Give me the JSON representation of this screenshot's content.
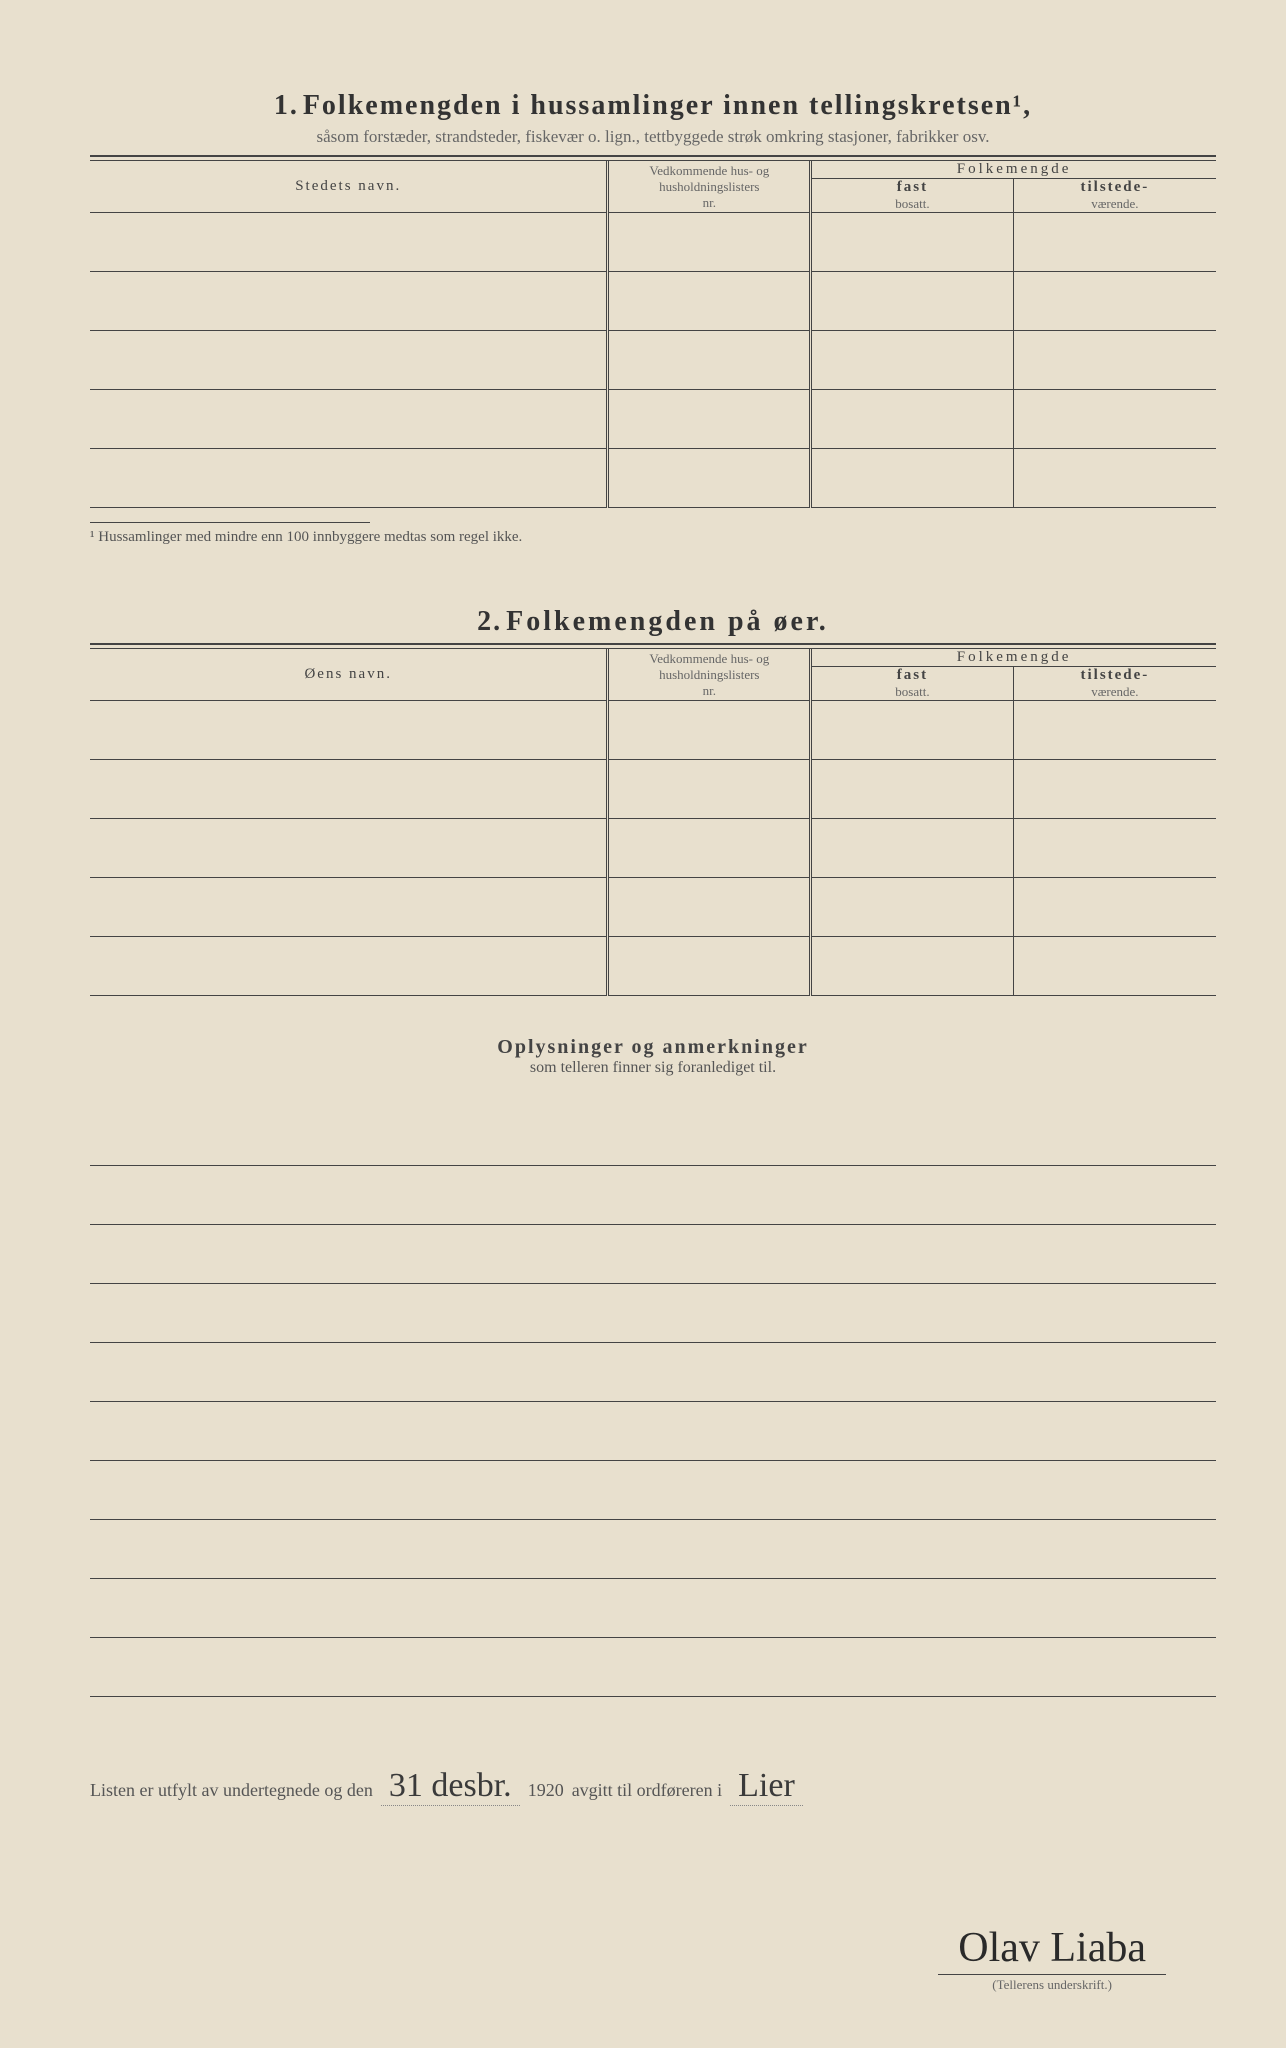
{
  "section1": {
    "number": "1.",
    "title": "Folkemengden i hussamlinger innen tellingskretsen¹,",
    "subtitle": "såsom forstæder, strandsteder, fiskevær o. lign., tettbyggede strøk omkring stasjoner, fabrikker osv.",
    "col_name": "Stedets navn.",
    "col_nr_1": "Vedkommende hus- og",
    "col_nr_2": "husholdningslisters",
    "col_nr_3": "nr.",
    "col_folk": "Folkemengde",
    "col_fast_1": "fast",
    "col_fast_2": "bosatt.",
    "col_til_1": "tilstede-",
    "col_til_2": "værende.",
    "footnote": "¹ Hussamlinger med mindre enn 100 innbyggere medtas som regel ikke."
  },
  "section2": {
    "number": "2.",
    "title": "Folkemengden på øer.",
    "col_name": "Øens navn.",
    "col_nr_1": "Vedkommende hus- og",
    "col_nr_2": "husholdningslisters",
    "col_nr_3": "nr.",
    "col_folk": "Folkemengde",
    "col_fast_1": "fast",
    "col_fast_2": "bosatt.",
    "col_til_1": "tilstede-",
    "col_til_2": "værende."
  },
  "remarks": {
    "title": "Oplysninger og anmerkninger",
    "subtitle": "som telleren finner sig foranlediget til."
  },
  "signature": {
    "prefix": "Listen er utfylt av undertegnede og den",
    "date_hand": "31 desbr.",
    "year": "1920",
    "mid": "avgitt til ordføreren i",
    "place_hand": "Lier",
    "name_hand": "Olav Liaba",
    "caption": "(Tellerens underskrift.)"
  },
  "layout": {
    "table1_rows": 5,
    "table2_rows": 5,
    "remark_lines": 10
  }
}
